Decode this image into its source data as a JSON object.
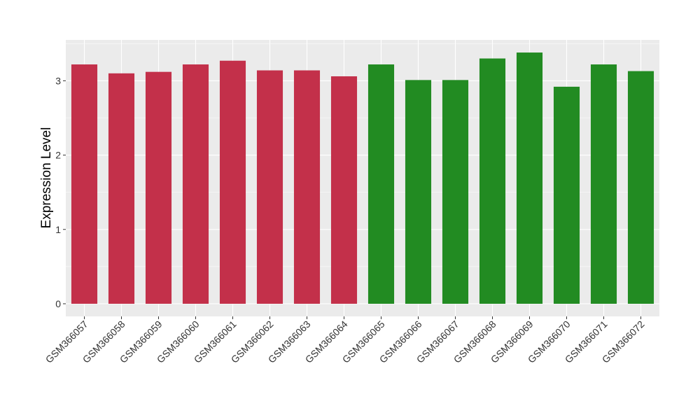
{
  "chart_data": {
    "type": "bar",
    "title": "",
    "xlabel": "",
    "ylabel": "Expression Level",
    "ylim": [
      -0.17,
      3.55
    ],
    "yticks": [
      0,
      1,
      2,
      3
    ],
    "grid": true,
    "legend": "none",
    "categories": [
      "GSM366057",
      "GSM366058",
      "GSM366059",
      "GSM366060",
      "GSM366061",
      "GSM366062",
      "GSM366063",
      "GSM366064",
      "GSM366065",
      "GSM366066",
      "GSM366067",
      "GSM366068",
      "GSM366069",
      "GSM366070",
      "GSM366071",
      "GSM366072"
    ],
    "values": [
      3.22,
      3.1,
      3.12,
      3.22,
      3.27,
      3.14,
      3.14,
      3.06,
      3.22,
      3.01,
      3.01,
      3.3,
      3.38,
      2.92,
      3.22,
      3.13
    ],
    "bar_colors": [
      "#c3304a",
      "#c3304a",
      "#c3304a",
      "#c3304a",
      "#c3304a",
      "#c3304a",
      "#c3304a",
      "#c3304a",
      "#228b22",
      "#228b22",
      "#228b22",
      "#228b22",
      "#228b22",
      "#228b22",
      "#228b22",
      "#228b22"
    ],
    "panel_color": "#ebebeb",
    "grid_color": "#ffffff"
  }
}
